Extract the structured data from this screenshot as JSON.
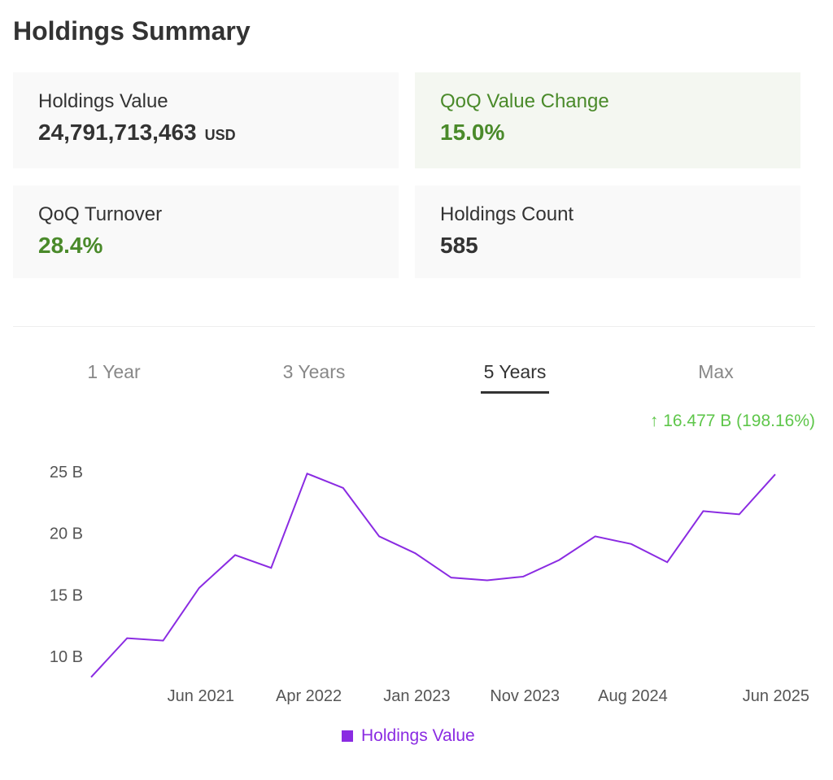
{
  "title": "Holdings Summary",
  "cards": [
    {
      "label": "Holdings Value",
      "value": "24,791,713,463",
      "unit": "USD"
    },
    {
      "label": "QoQ Value Change",
      "value": "15.0%"
    },
    {
      "label": "QoQ Turnover",
      "value": "28.4%"
    },
    {
      "label": "Holdings Count",
      "value": "585"
    }
  ],
  "tabs": [
    "1 Year",
    "3 Years",
    "5 Years",
    "Max"
  ],
  "active_tab": "5 Years",
  "change": {
    "icon": "arrow-up-icon",
    "text": "↑ 16.477 B (198.16%)"
  },
  "colors": {
    "line": "#8a2be2",
    "positive": "#4a8a2a",
    "change": "#5ec64a"
  },
  "chart_data": {
    "type": "line",
    "ylim": [
      8,
      25.5
    ],
    "yticks": [
      {
        "v": 25,
        "label": "25 B"
      },
      {
        "v": 20,
        "label": "20 B"
      },
      {
        "v": 15,
        "label": "15 B"
      },
      {
        "v": 10,
        "label": "10 B"
      }
    ],
    "xticks": [
      {
        "i": 3,
        "label": "Jun 2021"
      },
      {
        "i": 6,
        "label": "Apr 2022"
      },
      {
        "i": 9,
        "label": "Jan 2023"
      },
      {
        "i": 12,
        "label": "Nov 2023"
      },
      {
        "i": 15,
        "label": "Aug 2024"
      },
      {
        "i": 19,
        "label": "Jun 2025"
      }
    ],
    "series": [
      {
        "name": "Holdings Value",
        "unit": "B USD",
        "values": [
          8.31,
          11.48,
          11.28,
          15.56,
          18.23,
          17.19,
          24.85,
          23.68,
          19.75,
          18.38,
          16.4,
          16.18,
          16.48,
          17.83,
          19.75,
          19.13,
          17.65,
          21.8,
          21.54,
          24.79
        ]
      }
    ],
    "grid": false,
    "legend": "bottom-center"
  }
}
